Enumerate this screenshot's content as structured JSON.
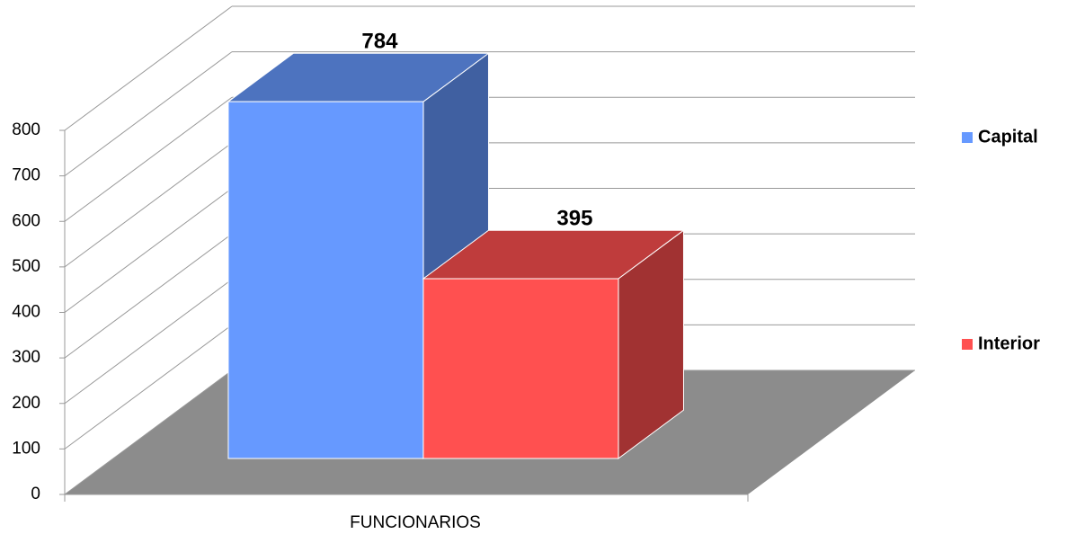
{
  "chart_data": {
    "type": "bar3d",
    "categories": [
      "FUNCIONARIOS"
    ],
    "series": [
      {
        "name": "Capital",
        "color": "#6699ff",
        "values": [
          784
        ]
      },
      {
        "name": "Interior",
        "color": "#ff5050",
        "values": [
          395
        ]
      }
    ],
    "ylim": [
      0,
      800
    ],
    "yticks": [
      0,
      100,
      200,
      300,
      400,
      500,
      600,
      700,
      800
    ],
    "grid": true,
    "legend": "right"
  }
}
